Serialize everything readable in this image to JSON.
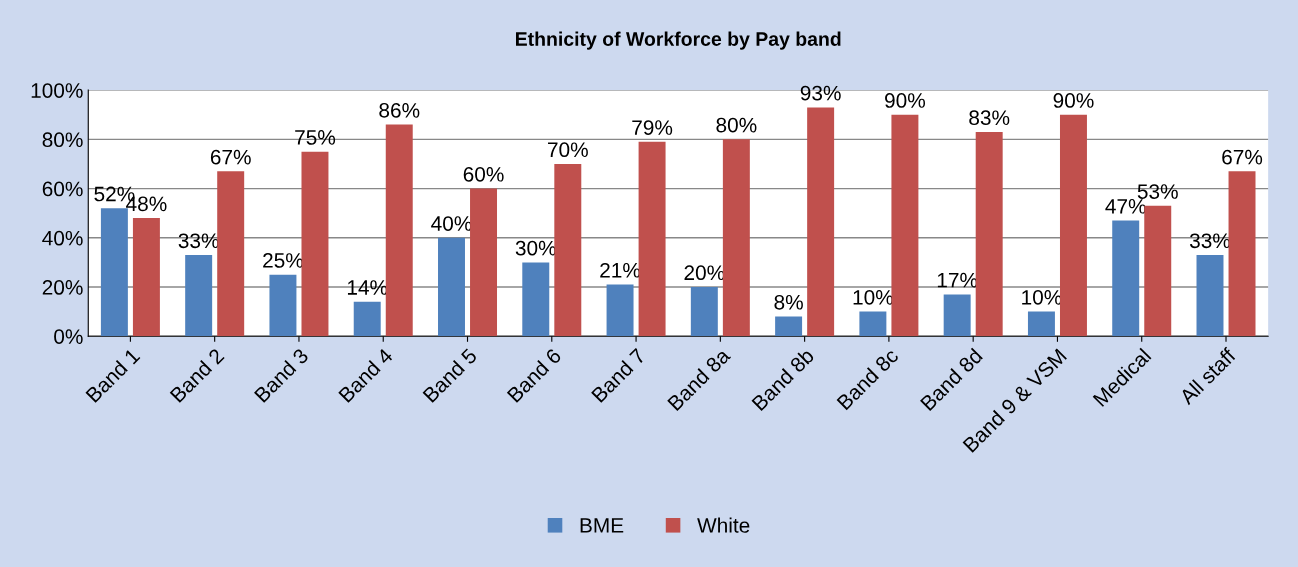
{
  "chart_data": {
    "type": "bar",
    "title": "Ethnicity of Workforce by Pay band",
    "categories": [
      "Band 1",
      "Band 2",
      "Band 3",
      "Band 4",
      "Band 5",
      "Band 6",
      "Band 7",
      "Band 8a",
      "Band 8b",
      "Band 8c",
      "Band 8d",
      "Band 9 & VSM",
      "Medical",
      "All staff"
    ],
    "series": [
      {
        "name": "BME",
        "color": "#4f81bd",
        "values": [
          52,
          33,
          25,
          14,
          40,
          30,
          21,
          20,
          8,
          10,
          17,
          10,
          47,
          33
        ],
        "value_labels": [
          "52%",
          "33%",
          "25%",
          "14%",
          "40%",
          "30%",
          "21%",
          "20%",
          "8%",
          "10%",
          "17%",
          "10%",
          "47%",
          "33%"
        ]
      },
      {
        "name": "White",
        "color": "#c0504d",
        "values": [
          48,
          67,
          75,
          86,
          60,
          70,
          79,
          80,
          93,
          90,
          83,
          90,
          53,
          67
        ],
        "value_labels": [
          "48%",
          "67%",
          "75%",
          "86%",
          "60%",
          "70%",
          "79%",
          "80%",
          "93%",
          "90%",
          "83%",
          "90%",
          "53%",
          "67%"
        ]
      }
    ],
    "ylim": [
      0,
      100
    ],
    "yticks": [
      {
        "value": 0,
        "label": "0%"
      },
      {
        "value": 20,
        "label": "20%"
      },
      {
        "value": 40,
        "label": "40%"
      },
      {
        "value": 60,
        "label": "60%"
      },
      {
        "value": 80,
        "label": "80%"
      },
      {
        "value": 100,
        "label": "100%"
      }
    ],
    "grid": "y",
    "legend": "bottom"
  }
}
